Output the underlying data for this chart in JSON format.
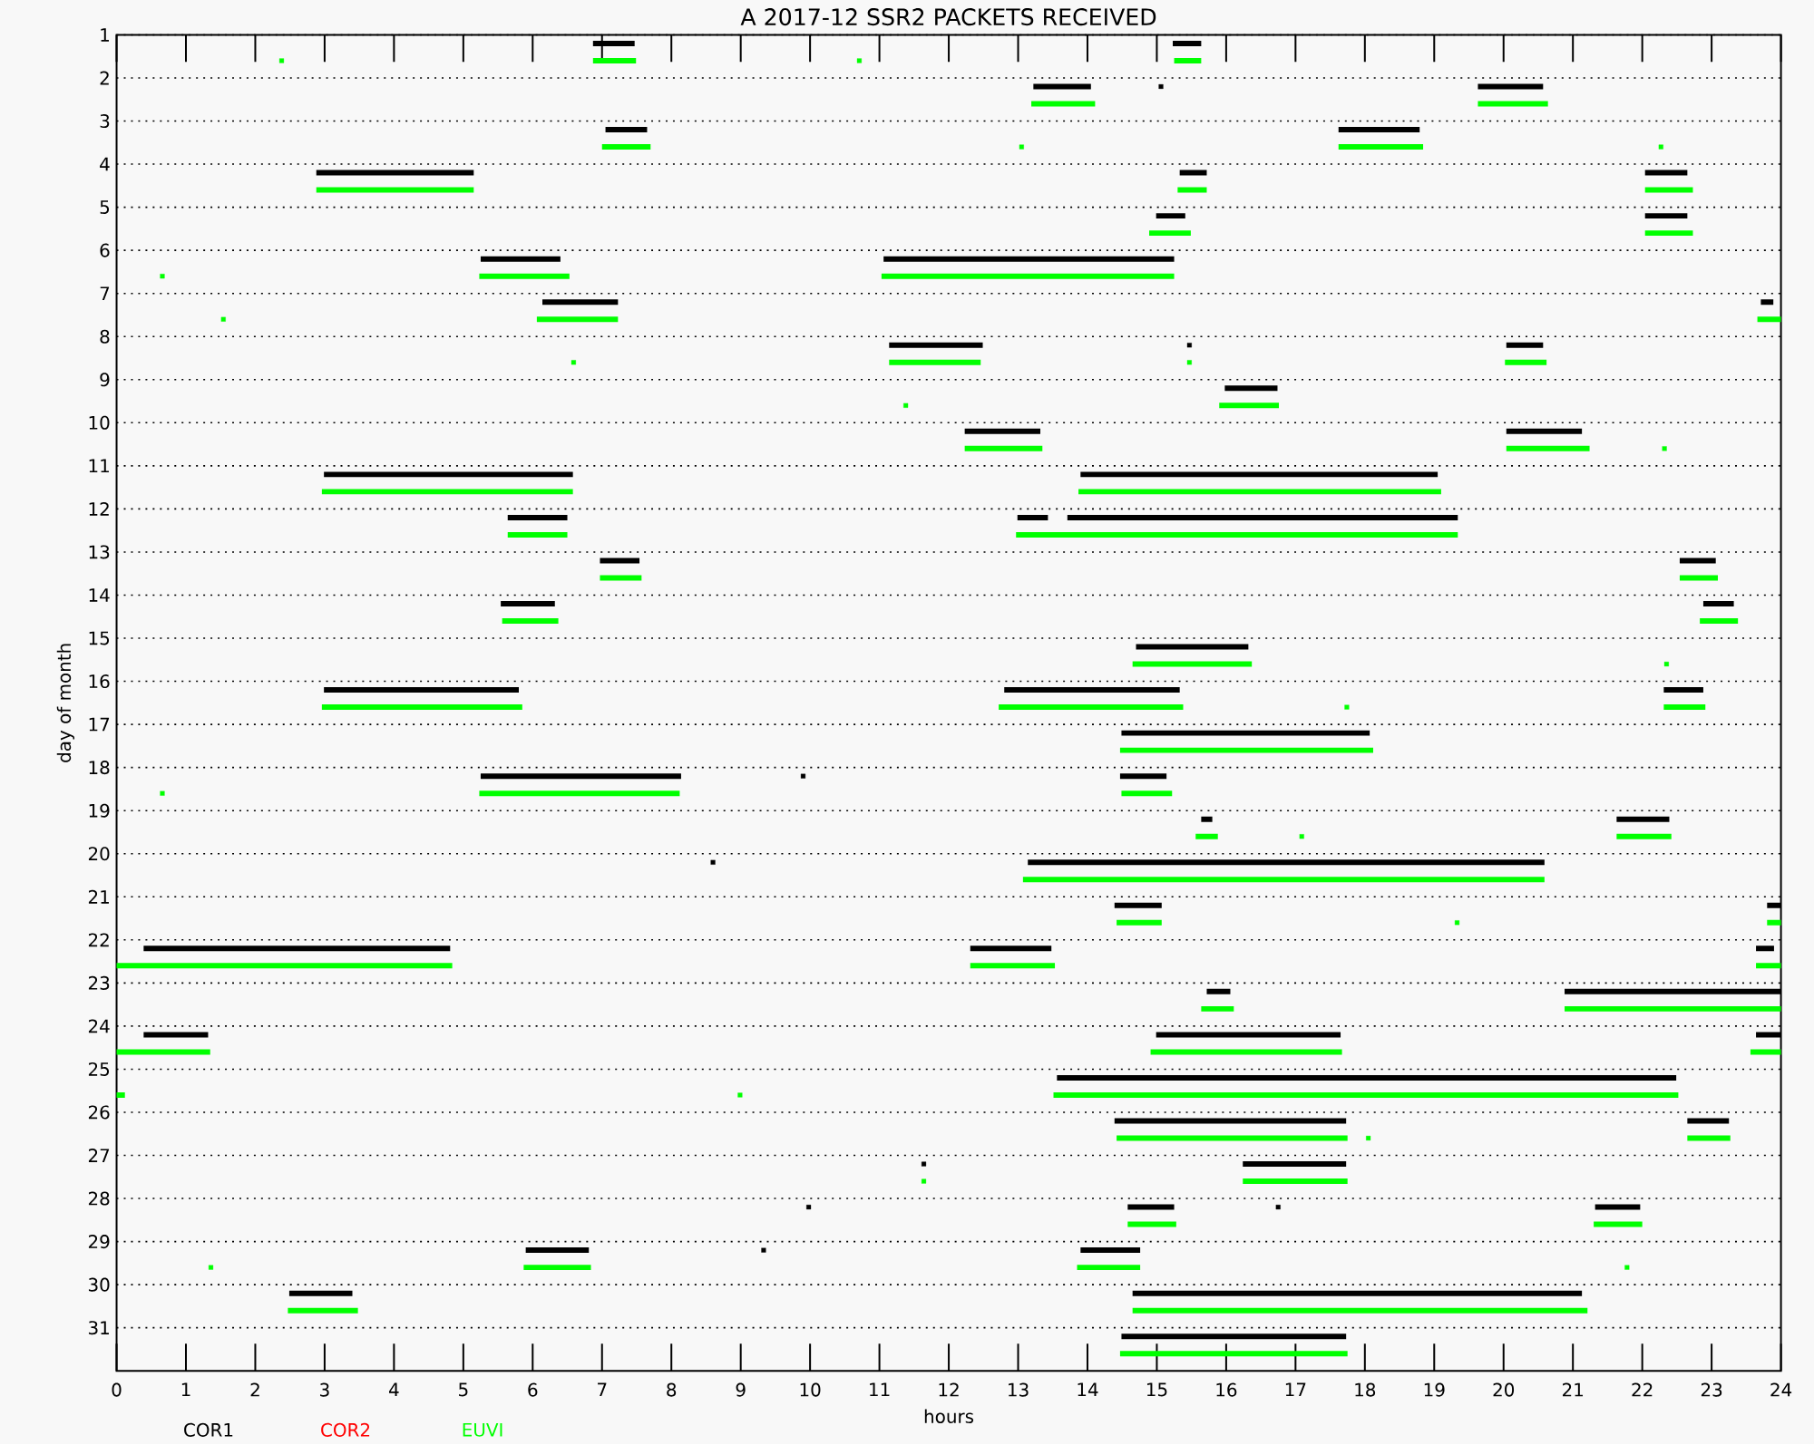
{
  "chart_data": {
    "type": "line",
    "title": "A 2017-12 SSR2 PACKETS RECEIVED",
    "xlabel": "hours",
    "ylabel": "day of month",
    "xlim": [
      0,
      24
    ],
    "ylim": [
      32,
      1
    ],
    "xticks": [
      0,
      1,
      2,
      3,
      4,
      5,
      6,
      7,
      8,
      9,
      10,
      11,
      12,
      13,
      14,
      15,
      16,
      17,
      18,
      19,
      20,
      21,
      22,
      23,
      24
    ],
    "yticks": [
      1,
      2,
      3,
      4,
      5,
      6,
      7,
      8,
      9,
      10,
      11,
      12,
      13,
      14,
      15,
      16,
      17,
      18,
      19,
      20,
      21,
      22,
      23,
      24,
      25,
      26,
      27,
      28,
      29,
      30,
      31
    ],
    "grid": "y",
    "legend": "bottom",
    "line_style": "solid",
    "marker": "none",
    "series": [
      {
        "name": "COR1",
        "color": "#000000",
        "x": [
          6.87,
          7.47,
          null,
          15.23,
          15.64
        ],
        "values": [
          1.2,
          1.2,
          null,
          1.2,
          1.2
        ]
      },
      {
        "color": "#000000",
        "x": [
          13.22,
          14.05,
          null,
          19.63,
          20.57
        ],
        "values": [
          2.2,
          2.2,
          null,
          2.2,
          2.2
        ]
      },
      {
        "color": "#000000",
        "x": [
          7.05,
          7.65,
          null,
          17.62,
          18.79
        ],
        "values": [
          3.2,
          3.2,
          null,
          3.2,
          3.2
        ]
      },
      {
        "color": "#000000",
        "x": [
          2.88,
          5.15,
          null,
          15.33,
          15.72,
          null,
          22.04,
          22.65
        ],
        "values": [
          4.2,
          4.2,
          null,
          4.2,
          4.2,
          null,
          4.2,
          4.2
        ]
      },
      {
        "color": "#000000",
        "x": [
          14.99,
          15.41,
          null,
          22.04,
          22.65
        ],
        "values": [
          5.2,
          5.2,
          null,
          5.2,
          5.2
        ]
      },
      {
        "color": "#000000",
        "x": [
          5.25,
          6.4,
          null,
          11.06,
          15.25
        ],
        "values": [
          6.2,
          6.2,
          null,
          6.2,
          6.2
        ]
      },
      {
        "color": "#000000",
        "x": [
          6.14,
          7.23,
          null,
          23.71,
          23.89
        ],
        "values": [
          7.2,
          7.2,
          null,
          7.2,
          7.2
        ]
      },
      {
        "color": "#000000",
        "x": [
          11.14,
          12.49,
          null,
          20.04,
          20.57
        ],
        "values": [
          8.2,
          8.2,
          null,
          8.2,
          8.2
        ]
      },
      {
        "color": "#000000",
        "x": [
          15.98,
          16.74
        ],
        "values": [
          9.2,
          9.2
        ]
      },
      {
        "color": "#000000",
        "x": [
          12.23,
          13.32,
          null,
          20.04,
          21.13
        ],
        "values": [
          10.2,
          10.2,
          null,
          10.2,
          10.2
        ]
      },
      {
        "color": "#000000",
        "x": [
          2.99,
          6.58,
          null,
          13.9,
          19.05
        ],
        "values": [
          11.2,
          11.2,
          null,
          11.2,
          11.2
        ]
      },
      {
        "color": "#000000",
        "x": [
          5.64,
          6.5,
          null,
          12.99,
          13.43,
          null,
          13.71,
          19.34
        ],
        "values": [
          12.2,
          12.2,
          null,
          12.2,
          12.2,
          null,
          12.2,
          12.2
        ]
      },
      {
        "color": "#000000",
        "x": [
          6.97,
          7.54,
          null,
          22.54,
          23.06
        ],
        "values": [
          13.2,
          13.2,
          null,
          13.2,
          13.2
        ]
      },
      {
        "color": "#000000",
        "x": [
          5.54,
          6.32,
          null,
          22.88,
          23.32
        ],
        "values": [
          14.2,
          14.2,
          null,
          14.2,
          14.2
        ]
      },
      {
        "color": "#000000",
        "x": [
          14.7,
          16.32
        ],
        "values": [
          15.2,
          15.2
        ]
      },
      {
        "color": "#000000",
        "x": [
          2.99,
          5.8,
          null,
          12.8,
          15.33,
          null,
          22.31,
          22.88
        ],
        "values": [
          16.2,
          16.2,
          null,
          16.2,
          16.2,
          null,
          16.2,
          16.2
        ]
      },
      {
        "color": "#000000",
        "x": [
          14.49,
          18.07
        ],
        "values": [
          17.2,
          17.2
        ]
      },
      {
        "color": "#000000",
        "x": [
          5.25,
          8.14,
          null,
          14.47,
          15.14
        ],
        "values": [
          18.2,
          18.2,
          null,
          18.2,
          18.2
        ]
      },
      {
        "color": "#000000",
        "x": [
          15.64,
          15.8,
          null,
          21.63,
          22.39
        ],
        "values": [
          19.2,
          19.2,
          null,
          19.2,
          19.2
        ]
      },
      {
        "color": "#000000",
        "x": [
          13.14,
          20.59
        ],
        "values": [
          20.2,
          20.2
        ]
      },
      {
        "color": "#000000",
        "x": [
          14.39,
          15.07,
          null,
          23.8,
          24
        ],
        "values": [
          21.2,
          21.2,
          null,
          21.2,
          21.2
        ]
      },
      {
        "color": "#000000",
        "x": [
          0.39,
          4.81,
          null,
          12.31,
          13.48,
          null,
          23.64,
          23.9
        ],
        "values": [
          22.2,
          22.2,
          null,
          22.2,
          22.2,
          null,
          22.2,
          22.2
        ]
      },
      {
        "color": "#000000",
        "x": [
          15.72,
          16.06,
          null,
          20.88,
          24
        ],
        "values": [
          23.2,
          23.2,
          null,
          23.2,
          23.2
        ]
      },
      {
        "color": "#000000",
        "x": [
          0.39,
          1.32,
          null,
          14.99,
          17.65,
          null,
          23.64,
          24
        ],
        "values": [
          24.2,
          24.2,
          null,
          24.2,
          24.2,
          null,
          24.2,
          24.2
        ]
      },
      {
        "color": "#000000",
        "x": [
          13.56,
          22.49
        ],
        "values": [
          25.2,
          25.2
        ]
      },
      {
        "color": "#000000",
        "x": [
          14.39,
          17.73,
          null,
          22.65,
          23.25
        ],
        "values": [
          26.2,
          26.2,
          null,
          26.2,
          26.2
        ]
      },
      {
        "color": "#000000",
        "x": [
          16.24,
          17.73
        ],
        "values": [
          27.2,
          27.2
        ]
      },
      {
        "color": "#000000",
        "x": [
          14.58,
          15.25,
          null,
          21.32,
          21.97
        ],
        "values": [
          28.2,
          28.2,
          null,
          28.2,
          28.2
        ]
      },
      {
        "color": "#000000",
        "x": [
          5.9,
          6.81,
          null,
          13.9,
          14.76
        ],
        "values": [
          29.2,
          29.2,
          null,
          29.2,
          29.2
        ]
      },
      {
        "color": "#000000",
        "x": [
          2.49,
          3.4,
          null,
          14.65,
          21.13
        ],
        "values": [
          30.2,
          30.2,
          null,
          30.2,
          30.2
        ]
      },
      {
        "color": "#000000",
        "x": [
          14.49,
          17.73
        ],
        "values": [
          31.2,
          31.2
        ]
      },
      {
        "type": "scatter",
        "marker": "square",
        "color": "#000000",
        "x": [
          15.06,
          15.47,
          9.9,
          8.6,
          11.64,
          9.98,
          16.75,
          9.33
        ],
        "values": [
          2.2,
          8.2,
          18.2,
          20.2,
          27.2,
          28.2,
          28.2,
          29.2
        ]
      },
      {
        "name": "COR2",
        "color": "#ff0000"
      },
      {
        "name": "EUVI",
        "color": "#00ff00",
        "x": [
          6.87,
          7.49,
          null,
          15.25,
          15.64
        ],
        "values": [
          1.6,
          1.6,
          null,
          1.6,
          1.6
        ]
      },
      {
        "color": "#00ff00",
        "x": [
          13.19,
          14.11,
          null,
          19.63,
          20.64
        ],
        "values": [
          2.6,
          2.6,
          null,
          2.6,
          2.6
        ]
      },
      {
        "color": "#00ff00",
        "x": [
          7.0,
          7.7,
          null,
          17.62,
          18.84
        ],
        "values": [
          3.6,
          3.6,
          null,
          3.6,
          3.6
        ]
      },
      {
        "color": "#00ff00",
        "x": [
          2.88,
          5.15,
          null,
          15.3,
          15.72,
          null,
          22.04,
          22.73
        ],
        "values": [
          4.6,
          4.6,
          null,
          4.6,
          4.6,
          null,
          4.6,
          4.6
        ]
      },
      {
        "color": "#00ff00",
        "x": [
          14.89,
          15.49,
          null,
          22.04,
          22.73
        ],
        "values": [
          5.6,
          5.6,
          null,
          5.6,
          5.6
        ]
      },
      {
        "color": "#00ff00",
        "x": [
          5.23,
          6.53,
          null,
          11.03,
          15.25
        ],
        "values": [
          6.6,
          6.6,
          null,
          6.6,
          6.6
        ]
      },
      {
        "color": "#00ff00",
        "x": [
          6.06,
          7.23,
          null,
          23.66,
          24
        ],
        "values": [
          7.6,
          7.6,
          null,
          7.6,
          7.6
        ]
      },
      {
        "color": "#00ff00",
        "x": [
          11.14,
          12.46,
          null,
          20.02,
          20.62
        ],
        "values": [
          8.6,
          8.6,
          null,
          8.6,
          8.6
        ]
      },
      {
        "color": "#00ff00",
        "x": [
          15.9,
          16.76
        ],
        "values": [
          9.6,
          9.6
        ]
      },
      {
        "color": "#00ff00",
        "x": [
          12.23,
          13.35,
          null,
          20.04,
          21.24
        ],
        "values": [
          10.6,
          10.6,
          null,
          10.6,
          10.6
        ]
      },
      {
        "color": "#00ff00",
        "x": [
          2.96,
          6.58,
          null,
          13.87,
          19.1
        ],
        "values": [
          11.6,
          11.6,
          null,
          11.6,
          11.6
        ]
      },
      {
        "color": "#00ff00",
        "x": [
          5.64,
          6.5,
          null,
          12.97,
          19.34
        ],
        "values": [
          12.6,
          12.6,
          null,
          12.6,
          12.6
        ]
      },
      {
        "color": "#00ff00",
        "x": [
          6.97,
          7.57,
          null,
          22.54,
          23.09
        ],
        "values": [
          13.6,
          13.6,
          null,
          13.6,
          13.6
        ]
      },
      {
        "color": "#00ff00",
        "x": [
          5.56,
          6.37,
          null,
          22.83,
          23.38
        ],
        "values": [
          14.6,
          14.6,
          null,
          14.6,
          14.6
        ]
      },
      {
        "color": "#00ff00",
        "x": [
          14.65,
          16.37
        ],
        "values": [
          15.6,
          15.6
        ]
      },
      {
        "color": "#00ff00",
        "x": [
          2.96,
          5.85,
          null,
          12.72,
          15.38,
          null,
          22.31,
          22.91
        ],
        "values": [
          16.6,
          16.6,
          null,
          16.6,
          16.6,
          null,
          16.6,
          16.6
        ]
      },
      {
        "color": "#00ff00",
        "x": [
          14.47,
          18.12
        ],
        "values": [
          17.6,
          17.6
        ]
      },
      {
        "color": "#00ff00",
        "x": [
          5.23,
          8.12,
          null,
          14.49,
          15.22
        ],
        "values": [
          18.6,
          18.6,
          null,
          18.6,
          18.6
        ]
      },
      {
        "color": "#00ff00",
        "x": [
          15.56,
          15.88,
          null,
          21.63,
          22.42
        ],
        "values": [
          19.6,
          19.6,
          null,
          19.6,
          19.6
        ]
      },
      {
        "color": "#00ff00",
        "x": [
          13.07,
          20.59
        ],
        "values": [
          20.6,
          20.6
        ]
      },
      {
        "color": "#00ff00",
        "x": [
          14.42,
          15.07,
          null,
          23.8,
          24
        ],
        "values": [
          21.6,
          21.6,
          null,
          21.6,
          21.6
        ]
      },
      {
        "color": "#00ff00",
        "x": [
          0,
          4.84,
          null,
          12.31,
          13.53,
          null,
          23.64,
          24
        ],
        "values": [
          22.6,
          22.6,
          null,
          22.6,
          22.6,
          null,
          22.6,
          22.6
        ]
      },
      {
        "color": "#00ff00",
        "x": [
          15.64,
          16.11,
          null,
          20.88,
          24
        ],
        "values": [
          23.6,
          23.6,
          null,
          23.6,
          23.6
        ]
      },
      {
        "color": "#00ff00",
        "x": [
          0,
          1.35,
          null,
          14.91,
          17.67,
          null,
          23.56,
          24
        ],
        "values": [
          24.6,
          24.6,
          null,
          24.6,
          24.6,
          null,
          24.6,
          24.6
        ]
      },
      {
        "color": "#00ff00",
        "x": [
          0,
          0.12,
          null,
          13.51,
          22.52
        ],
        "values": [
          25.6,
          25.6,
          null,
          25.6,
          25.6
        ]
      },
      {
        "color": "#00ff00",
        "x": [
          14.42,
          17.75,
          null,
          22.65,
          23.27
        ],
        "values": [
          26.6,
          26.6,
          null,
          26.6,
          26.6
        ]
      },
      {
        "color": "#00ff00",
        "x": [
          16.24,
          17.75
        ],
        "values": [
          27.6,
          27.6
        ]
      },
      {
        "color": "#00ff00",
        "x": [
          14.58,
          15.28,
          null,
          21.3,
          22.0
        ],
        "values": [
          28.6,
          28.6,
          null,
          28.6,
          28.6
        ]
      },
      {
        "color": "#00ff00",
        "x": [
          5.87,
          6.84,
          null,
          13.85,
          14.76
        ],
        "values": [
          29.6,
          29.6,
          null,
          29.6,
          29.6
        ]
      },
      {
        "color": "#00ff00",
        "x": [
          2.47,
          3.48,
          null,
          14.65,
          21.21
        ],
        "values": [
          30.6,
          30.6,
          null,
          30.6,
          30.6
        ]
      },
      {
        "color": "#00ff00",
        "x": [
          14.47,
          17.75
        ],
        "values": [
          31.6,
          31.6
        ]
      },
      {
        "type": "scatter",
        "marker": "square",
        "color": "#00ff00",
        "x": [
          2.38,
          10.71,
          13.05,
          22.27,
          0.66,
          1.54,
          6.59,
          15.47,
          11.38,
          22.32,
          22.35,
          17.74,
          0.66,
          17.09,
          19.33,
          8.99,
          18.05,
          11.64,
          1.36,
          21.78
        ],
        "values": [
          1.6,
          1.6,
          3.6,
          3.6,
          6.6,
          7.6,
          8.6,
          8.6,
          9.6,
          10.6,
          15.6,
          16.6,
          18.6,
          19.6,
          21.6,
          25.6,
          26.6,
          27.6,
          29.6,
          29.6
        ]
      }
    ]
  }
}
